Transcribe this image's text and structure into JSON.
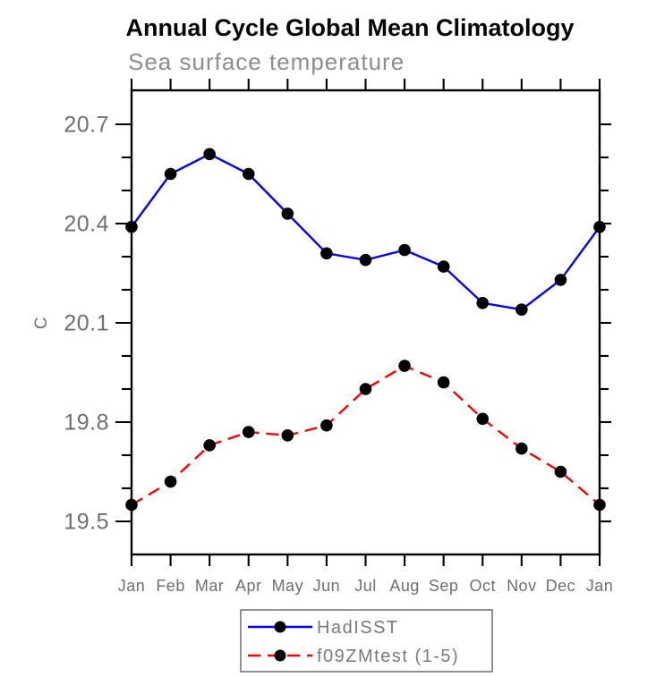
{
  "header": {
    "title": "Annual Cycle Global Mean Climatology"
  },
  "chart": {
    "subtitle": "Sea surface temperature",
    "ylabel": "C"
  },
  "legend": {
    "position": "bottom",
    "items": [
      {
        "label": "HadISST"
      },
      {
        "label": "f09ZMtest (1-5)"
      }
    ]
  },
  "chart_data": {
    "type": "line",
    "title": "Annual Cycle Global Mean Climatology",
    "subtitle": "Sea surface temperature",
    "xlabel": "",
    "ylabel": "C",
    "categories": [
      "Jan",
      "Feb",
      "Mar",
      "Apr",
      "May",
      "Jun",
      "Jul",
      "Aug",
      "Sep",
      "Oct",
      "Nov",
      "Dec",
      "Jan"
    ],
    "ylim": [
      19.4,
      20.8
    ],
    "y_ticks_major": [
      19.5,
      19.8,
      20.1,
      20.4,
      20.7
    ],
    "y_ticks_minor": [
      19.6,
      19.7,
      19.9,
      20.0,
      20.2,
      20.3,
      20.5,
      20.6
    ],
    "grid": false,
    "legend_position": "bottom",
    "series": [
      {
        "name": "HadISST",
        "color": "#0000ff",
        "style": "solid",
        "marker": "circle",
        "marker_color": "#000000",
        "values": [
          20.39,
          20.55,
          20.61,
          20.55,
          20.43,
          20.31,
          20.29,
          20.32,
          20.27,
          20.16,
          20.14,
          20.23,
          20.39
        ]
      },
      {
        "name": "f09ZMtest (1-5)",
        "color": "#ff0000",
        "style": "dashed",
        "marker": "circle",
        "marker_color": "#000000",
        "values": [
          19.55,
          19.62,
          19.73,
          19.77,
          19.76,
          19.79,
          19.9,
          19.97,
          19.92,
          19.81,
          19.72,
          19.65,
          19.55
        ]
      }
    ]
  }
}
